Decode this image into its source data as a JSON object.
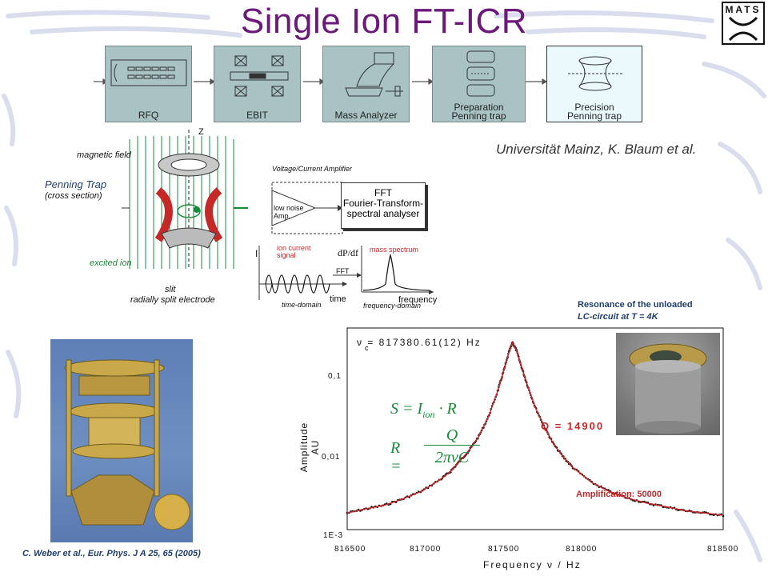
{
  "title": "Single Ion FT-ICR",
  "logo": {
    "text": "MATS"
  },
  "pipeline": [
    {
      "label": "RFQ"
    },
    {
      "label": "EBIT"
    },
    {
      "label": "Mass Analyzer"
    },
    {
      "label": "Preparation\nPenning trap",
      "line1": "Preparation",
      "line2": "Penning trap"
    },
    {
      "label": "Precision\nPenning trap",
      "line1": "Precision",
      "line2": "Penning trap"
    }
  ],
  "attribution": "Universität Mainz, K. Blaum et al.",
  "schematic": {
    "z_axis": "Z",
    "magnetic_field": "magnetic field",
    "penning_trap": "Penning Trap",
    "cross_section": "(cross section)",
    "excited_ion": "excited ion",
    "slit": "slit",
    "split_electrode": "radially split electrode",
    "amplifier_title": "Voltage/Current Amplifier",
    "amplifier_inner": "low noise\nAmp.",
    "amp_line1": "low noise",
    "amp_line2": "Amp.",
    "fft_box_line1": "FFT",
    "fft_box_line2": "Fourier-Transform-",
    "fft_box_line3": "spectral analyser",
    "signal_axis": "I",
    "signal_title_line1": "ion current",
    "signal_title_line2": "signal",
    "time_label": "time",
    "time_domain": "time-domain",
    "fft_arrow": "FFT",
    "spectrum_axis": "dP/df",
    "spectrum_title": "mass spectrum",
    "frequency_label": "frequency",
    "frequency_domain": "frequency-domain"
  },
  "reference": "C. Weber et al., Eur. Phys. J A 25, 65 (2005)",
  "resonance_caption_line1": "Resonance  of  the unloaded",
  "resonance_caption_line2": "LC-circuit  at  T = 4K",
  "chart_data": {
    "type": "line",
    "xlabel": "Frequency  ν  /  Hz",
    "ylabel": "Amplitude AU",
    "xlim": [
      816500,
      818500
    ],
    "ylim": [
      0.001,
      0.3
    ],
    "yscale": "log",
    "x_ticks": [
      "816500",
      "817000",
      "817500",
      "818000",
      "818500"
    ],
    "y_ticks": [
      "1E-3",
      "0,01",
      "0,1"
    ],
    "nu_annotation": "ν  = 817380.61(12) Hz",
    "nu_subscript": "c",
    "q_annotation": "Q = 14900",
    "amplification": "Amplification: 50000",
    "formula1": "S = I_ion · R",
    "formula2": "R = Q / (2πνC)",
    "series": [
      {
        "x": [
          816500,
          816600,
          816700,
          816800,
          816900,
          817000,
          817050,
          817100,
          817150,
          817200,
          817250,
          817300,
          817330,
          817360,
          817380,
          817400,
          817430,
          817460,
          817500,
          817550,
          817600,
          817650,
          817700,
          817800,
          817900,
          818000,
          818100,
          818200,
          818300,
          818400,
          818500
        ],
        "y": [
          0.0016,
          0.0018,
          0.002,
          0.0024,
          0.003,
          0.0042,
          0.0052,
          0.007,
          0.0095,
          0.014,
          0.024,
          0.05,
          0.085,
          0.15,
          0.2,
          0.16,
          0.095,
          0.058,
          0.032,
          0.018,
          0.011,
          0.0078,
          0.0058,
          0.0038,
          0.0029,
          0.0024,
          0.0021,
          0.0019,
          0.0017,
          0.0016,
          0.0015
        ]
      }
    ],
    "colors": {
      "data_points": "#111111",
      "fit_line": "#c62828"
    }
  }
}
